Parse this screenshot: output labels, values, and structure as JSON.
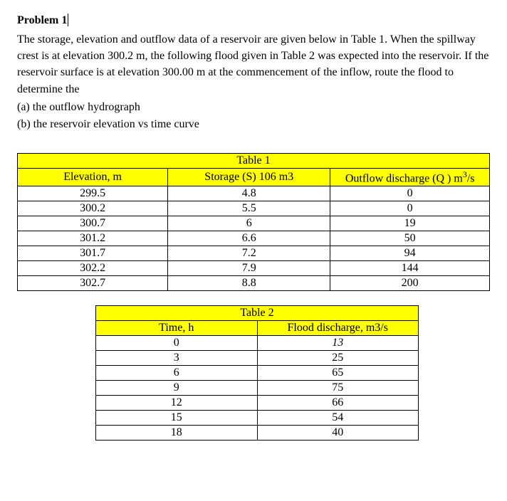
{
  "problem_title": "Problem 1",
  "intro": "The storage, elevation and outflow data of a reservoir are given below in Table 1. When the spillway crest is at elevation 300.2 m, the following flood given in Table 2 was expected into the reservoir. If the reservoir surface is at elevation 300.00 m at the commencement of the inflow, route the flood to determine the",
  "part_a": "(a) the outflow hydrograph",
  "part_b": "(b) the reservoir elevation vs time curve",
  "table1": {
    "title": "Table 1",
    "headers": {
      "col1": "Elevation, m",
      "col2": "Storage (S) 106 m3",
      "col3_prefix": "Outflow discharge (Q ) m",
      "col3_sup": "3",
      "col3_suffix": "/s"
    },
    "rows": [
      {
        "elev": "299.5",
        "storage": "4.8",
        "outflow": "0"
      },
      {
        "elev": "300.2",
        "storage": "5.5",
        "outflow": "0"
      },
      {
        "elev": "300.7",
        "storage": "6",
        "outflow": "19"
      },
      {
        "elev": "301.2",
        "storage": "6.6",
        "outflow": "50"
      },
      {
        "elev": "301.7",
        "storage": "7.2",
        "outflow": "94"
      },
      {
        "elev": "302.2",
        "storage": "7.9",
        "outflow": "144"
      },
      {
        "elev": "302.7",
        "storage": "8.8",
        "outflow": "200"
      }
    ],
    "styling": {
      "title_bg": "#ffff00",
      "header_bg": "#ffff00",
      "border_color": "#000000",
      "font_family": "Times New Roman",
      "font_size_pt": 12
    }
  },
  "table2": {
    "title": "Table 2",
    "headers": {
      "col1": "Time, h",
      "col2": "Flood discharge, m3/s"
    },
    "rows": [
      {
        "time": "0",
        "discharge": "13"
      },
      {
        "time": "3",
        "discharge": "25"
      },
      {
        "time": "6",
        "discharge": "65"
      },
      {
        "time": "9",
        "discharge": "75"
      },
      {
        "time": "12",
        "discharge": "66"
      },
      {
        "time": "15",
        "discharge": "54"
      },
      {
        "time": "18",
        "discharge": "40"
      }
    ],
    "styling": {
      "title_bg": "#ffff00",
      "header_bg": "#ffff00",
      "border_color": "#000000",
      "font_family": "Times New Roman",
      "font_size_pt": 12
    }
  }
}
